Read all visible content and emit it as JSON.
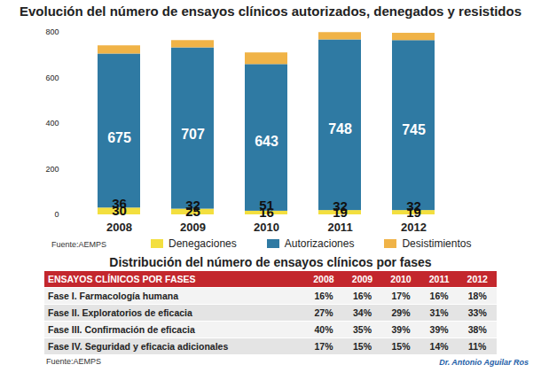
{
  "chart_data": {
    "type": "bar",
    "title": "Evolución del número de ensayos clínicos autorizados, denegados y resistidos",
    "categories": [
      "2008",
      "2009",
      "2010",
      "2011",
      "2012"
    ],
    "series": [
      {
        "name": "Denegaciones",
        "color": "#f3df3f",
        "values": [
          30,
          25,
          16,
          19,
          19
        ]
      },
      {
        "name": "Autorizaciones",
        "color": "#2f7aa3",
        "values": [
          675,
          707,
          643,
          748,
          745
        ]
      },
      {
        "name": "Desistimientos",
        "color": "#f0b347",
        "values": [
          36,
          32,
          51,
          32,
          32
        ]
      }
    ],
    "ylim": [
      0,
      800
    ],
    "yticks": [
      0,
      200,
      400,
      600,
      800
    ],
    "stacked": true,
    "data_labels": true,
    "grid": false,
    "legend": "bottom",
    "source": "Fuente:AEMPS"
  },
  "table": {
    "title": "Distribución del número de ensayos clínicos por fases",
    "header": [
      "ENSAYOS CLÍNICOS POR FASES",
      "2008",
      "2009",
      "2010",
      "2011",
      "2012"
    ],
    "rows": [
      [
        "Fase I. Farmacología humana",
        "16%",
        "16%",
        "17%",
        "16%",
        "18%"
      ],
      [
        "Fase II. Exploratorios de eficacia",
        "27%",
        "34%",
        "29%",
        "31%",
        "33%"
      ],
      [
        "Fase III. Confirmación de eficacia",
        "40%",
        "35%",
        "39%",
        "39%",
        "38%"
      ],
      [
        "Fase IV. Seguridad y eficacia adicionales",
        "17%",
        "15%",
        "15%",
        "14%",
        "11%"
      ]
    ],
    "source": "Fuente:AEMPS"
  },
  "credit": "Dr. Antonio Aguilar Ros"
}
